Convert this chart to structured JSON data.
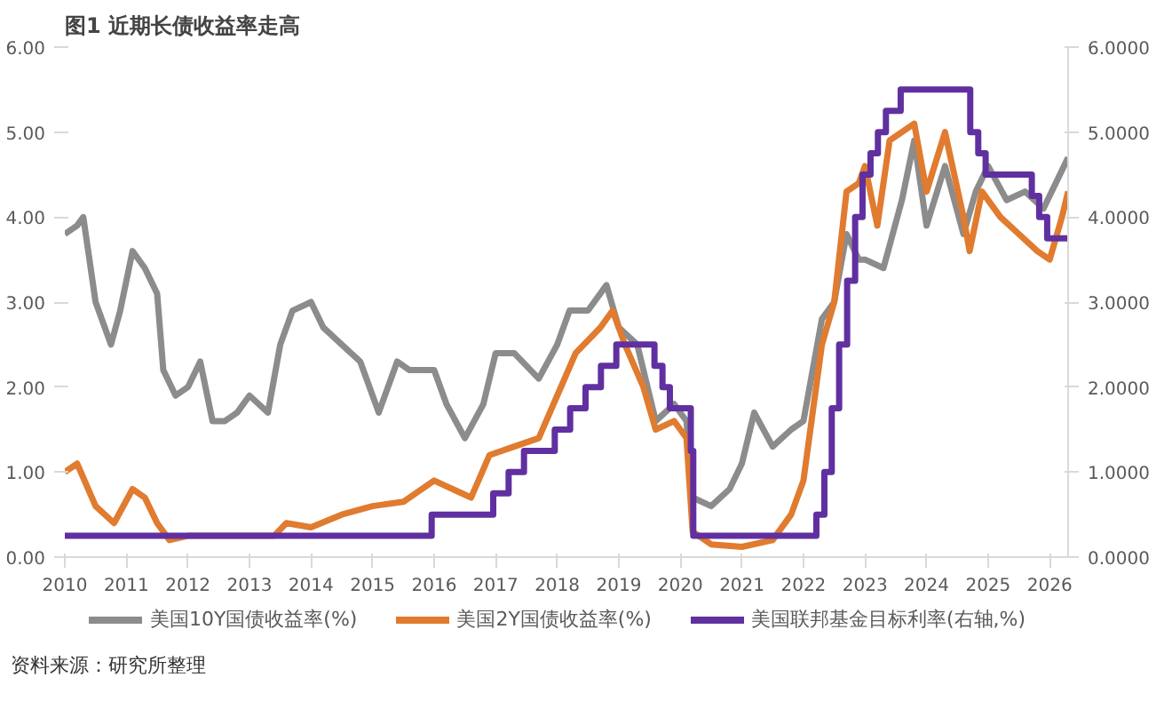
{
  "chart_data": {
    "type": "line",
    "title": "图1  近期长债收益率走高",
    "xlim": [
      2010,
      2026.3
    ],
    "xticks": [
      2010,
      2011,
      2012,
      2013,
      2014,
      2015,
      2016,
      2017,
      2018,
      2019,
      2020,
      2021,
      2022,
      2023,
      2024,
      2025,
      2026
    ],
    "ylim": [
      0,
      6
    ],
    "yticks": [
      {
        "value": 0,
        "label": "0.00"
      },
      {
        "value": 1,
        "label": "1.00"
      },
      {
        "value": 2,
        "label": "2.00"
      },
      {
        "value": 3,
        "label": "3.00"
      },
      {
        "value": 4,
        "label": "4.00"
      },
      {
        "value": 5,
        "label": "5.00"
      },
      {
        "value": 6,
        "label": "6.00"
      }
    ],
    "y2lim": [
      0,
      6
    ],
    "y2ticks": [
      {
        "value": 0,
        "label": "0.0000"
      },
      {
        "value": 1,
        "label": "1.0000"
      },
      {
        "value": 2,
        "label": "2.0000"
      },
      {
        "value": 3,
        "label": "3.0000"
      },
      {
        "value": 4,
        "label": "4.0000"
      },
      {
        "value": 5,
        "label": "5.0000"
      },
      {
        "value": 6,
        "label": "6.0000"
      }
    ],
    "legend": "bottom",
    "annotations": [
      "资料来源：研究所整理"
    ],
    "series": [
      {
        "name": "美国10Y国债收益率(%)",
        "color": "#8c8c8c",
        "x": [
          2010.0,
          2010.2,
          2010.3,
          2010.5,
          2010.75,
          2010.9,
          2011.1,
          2011.3,
          2011.5,
          2011.6,
          2011.8,
          2012.0,
          2012.2,
          2012.4,
          2012.6,
          2012.8,
          2013.0,
          2013.3,
          2013.5,
          2013.7,
          2014.0,
          2014.2,
          2014.5,
          2014.8,
          2015.1,
          2015.4,
          2015.6,
          2016.0,
          2016.2,
          2016.5,
          2016.8,
          2017.0,
          2017.3,
          2017.7,
          2018.0,
          2018.2,
          2018.5,
          2018.8,
          2019.0,
          2019.3,
          2019.6,
          2019.9,
          2020.1,
          2020.2,
          2020.5,
          2020.8,
          2021.0,
          2021.2,
          2021.5,
          2021.8,
          2022.0,
          2022.3,
          2022.5,
          2022.7,
          2022.9,
          2023.0,
          2023.3,
          2023.6,
          2023.8,
          2024.0,
          2024.3,
          2024.6,
          2024.8,
          2025.0,
          2025.3,
          2025.6,
          2025.9,
          2026.1,
          2026.3
        ],
        "values": [
          3.8,
          3.9,
          4.0,
          3.0,
          2.5,
          2.9,
          3.6,
          3.4,
          3.1,
          2.2,
          1.9,
          2.0,
          2.3,
          1.6,
          1.6,
          1.7,
          1.9,
          1.7,
          2.5,
          2.9,
          3.0,
          2.7,
          2.5,
          2.3,
          1.7,
          2.3,
          2.2,
          2.2,
          1.8,
          1.4,
          1.8,
          2.4,
          2.4,
          2.1,
          2.5,
          2.9,
          2.9,
          3.2,
          2.7,
          2.5,
          1.6,
          1.8,
          1.6,
          0.7,
          0.6,
          0.8,
          1.1,
          1.7,
          1.3,
          1.5,
          1.6,
          2.8,
          3.0,
          3.8,
          3.5,
          3.5,
          3.4,
          4.2,
          4.9,
          3.9,
          4.6,
          3.8,
          4.3,
          4.6,
          4.2,
          4.3,
          4.1,
          4.4,
          4.7
        ]
      },
      {
        "name": "美国2Y国债收益率(%)",
        "color": "#e07b2f",
        "x": [
          2010.0,
          2010.2,
          2010.5,
          2010.8,
          2011.1,
          2011.3,
          2011.5,
          2011.7,
          2012.0,
          2012.5,
          2013.0,
          2013.4,
          2013.6,
          2014.0,
          2014.5,
          2015.0,
          2015.5,
          2016.0,
          2016.3,
          2016.6,
          2016.9,
          2017.3,
          2017.7,
          2018.0,
          2018.3,
          2018.7,
          2018.9,
          2019.1,
          2019.4,
          2019.6,
          2019.9,
          2020.1,
          2020.2,
          2020.5,
          2021.0,
          2021.5,
          2021.8,
          2022.0,
          2022.3,
          2022.5,
          2022.7,
          2022.9,
          2023.0,
          2023.2,
          2023.4,
          2023.6,
          2023.8,
          2024.0,
          2024.3,
          2024.6,
          2024.7,
          2024.9,
          2025.2,
          2025.5,
          2025.8,
          2026.0,
          2026.2,
          2026.3
        ],
        "values": [
          1.0,
          1.1,
          0.6,
          0.4,
          0.8,
          0.7,
          0.4,
          0.2,
          0.25,
          0.25,
          0.25,
          0.25,
          0.4,
          0.35,
          0.5,
          0.6,
          0.65,
          0.9,
          0.8,
          0.7,
          1.2,
          1.3,
          1.4,
          1.9,
          2.4,
          2.7,
          2.9,
          2.5,
          2.0,
          1.5,
          1.6,
          1.4,
          0.3,
          0.15,
          0.12,
          0.2,
          0.5,
          0.9,
          2.5,
          3.0,
          4.3,
          4.4,
          4.6,
          3.9,
          4.9,
          5.0,
          5.1,
          4.3,
          5.0,
          4.0,
          3.6,
          4.3,
          4.0,
          3.8,
          3.6,
          3.5,
          4.0,
          4.3
        ]
      },
      {
        "name": "美国联邦基金目标利率(右轴,%)",
        "color": "#6030a0",
        "type": "step",
        "axis": "y2",
        "x": [
          2010.0,
          2015.96,
          2016.96,
          2017.21,
          2017.46,
          2017.96,
          2018.21,
          2018.46,
          2018.71,
          2018.96,
          2019.58,
          2019.71,
          2019.83,
          2020.17,
          2020.21,
          2022.21,
          2022.34,
          2022.46,
          2022.58,
          2022.71,
          2022.84,
          2022.96,
          2023.09,
          2023.21,
          2023.34,
          2023.58,
          2024.71,
          2024.84,
          2024.96,
          2025.71,
          2025.83,
          2025.96,
          2026.3
        ],
        "values": [
          0.25,
          0.5,
          0.75,
          1.0,
          1.25,
          1.5,
          1.75,
          2.0,
          2.25,
          2.5,
          2.25,
          2.0,
          1.75,
          1.25,
          0.25,
          0.5,
          1.0,
          1.75,
          2.5,
          3.25,
          4.0,
          4.5,
          4.75,
          5.0,
          5.25,
          5.5,
          5.0,
          4.75,
          4.5,
          4.25,
          4.0,
          3.75,
          3.75
        ]
      }
    ]
  }
}
